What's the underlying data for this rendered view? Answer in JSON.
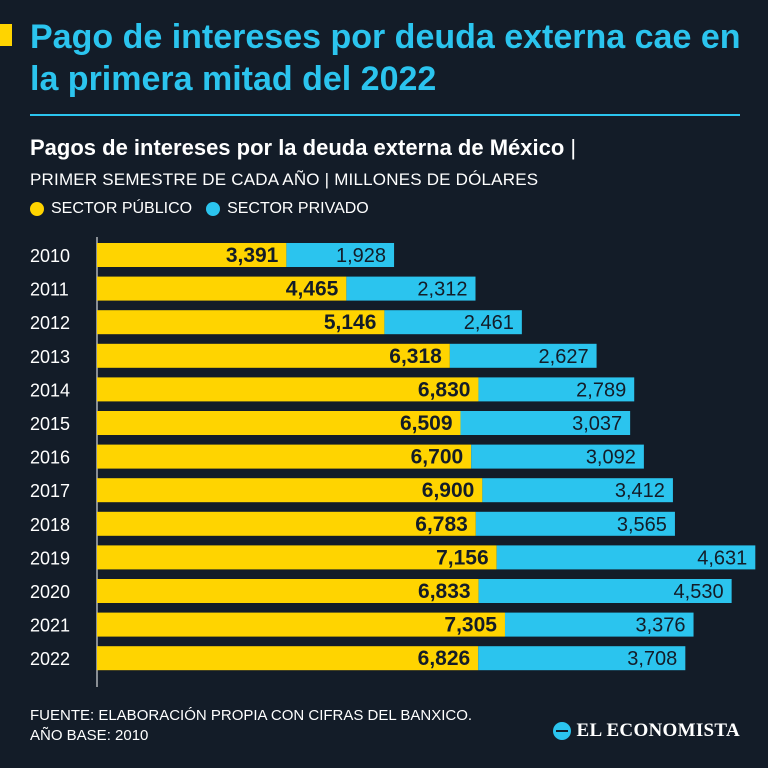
{
  "title": "Pago de intereses por deuda externa cae en la primera mitad del 2022",
  "subtitle": "Pagos de intereses por la deuda externa de México",
  "subtitle_separator": "|",
  "note": "PRIMER SEMESTRE DE CADA AÑO | MILLONES DE DÓLARES",
  "colors": {
    "public": "#ffd400",
    "private": "#2bc4ee",
    "background": "#131c28",
    "accent": "#2bc4ee"
  },
  "legend": {
    "public_label": "SECTOR PÚBLICO",
    "private_label": "SECTOR PRIVADO"
  },
  "source": "FUENTE: ELABORACIÓN PROPIA CON CIFRAS DEL BANXICO.",
  "base_year": "AÑO BASE: 2010",
  "brand": "EL ECONOMISTA",
  "chart_data": {
    "type": "bar",
    "orientation": "horizontal",
    "stacked": true,
    "title": "Pagos de intereses por la deuda externa de México",
    "xlabel": "Millones de dólares",
    "ylabel": "",
    "xlim": [
      0,
      12000
    ],
    "categories": [
      "2010",
      "2011",
      "2012",
      "2013",
      "2014",
      "2015",
      "2016",
      "2017",
      "2018",
      "2019",
      "2020",
      "2021",
      "2022"
    ],
    "series": [
      {
        "name": "SECTOR PÚBLICO",
        "values": [
          3391,
          4465,
          5146,
          6318,
          6830,
          6509,
          6700,
          6900,
          6783,
          7156,
          6833,
          7305,
          6826
        ]
      },
      {
        "name": "SECTOR PRIVADO",
        "values": [
          1928,
          2312,
          2461,
          2627,
          2789,
          3037,
          3092,
          3412,
          3565,
          4631,
          4530,
          3376,
          3708
        ]
      }
    ]
  }
}
